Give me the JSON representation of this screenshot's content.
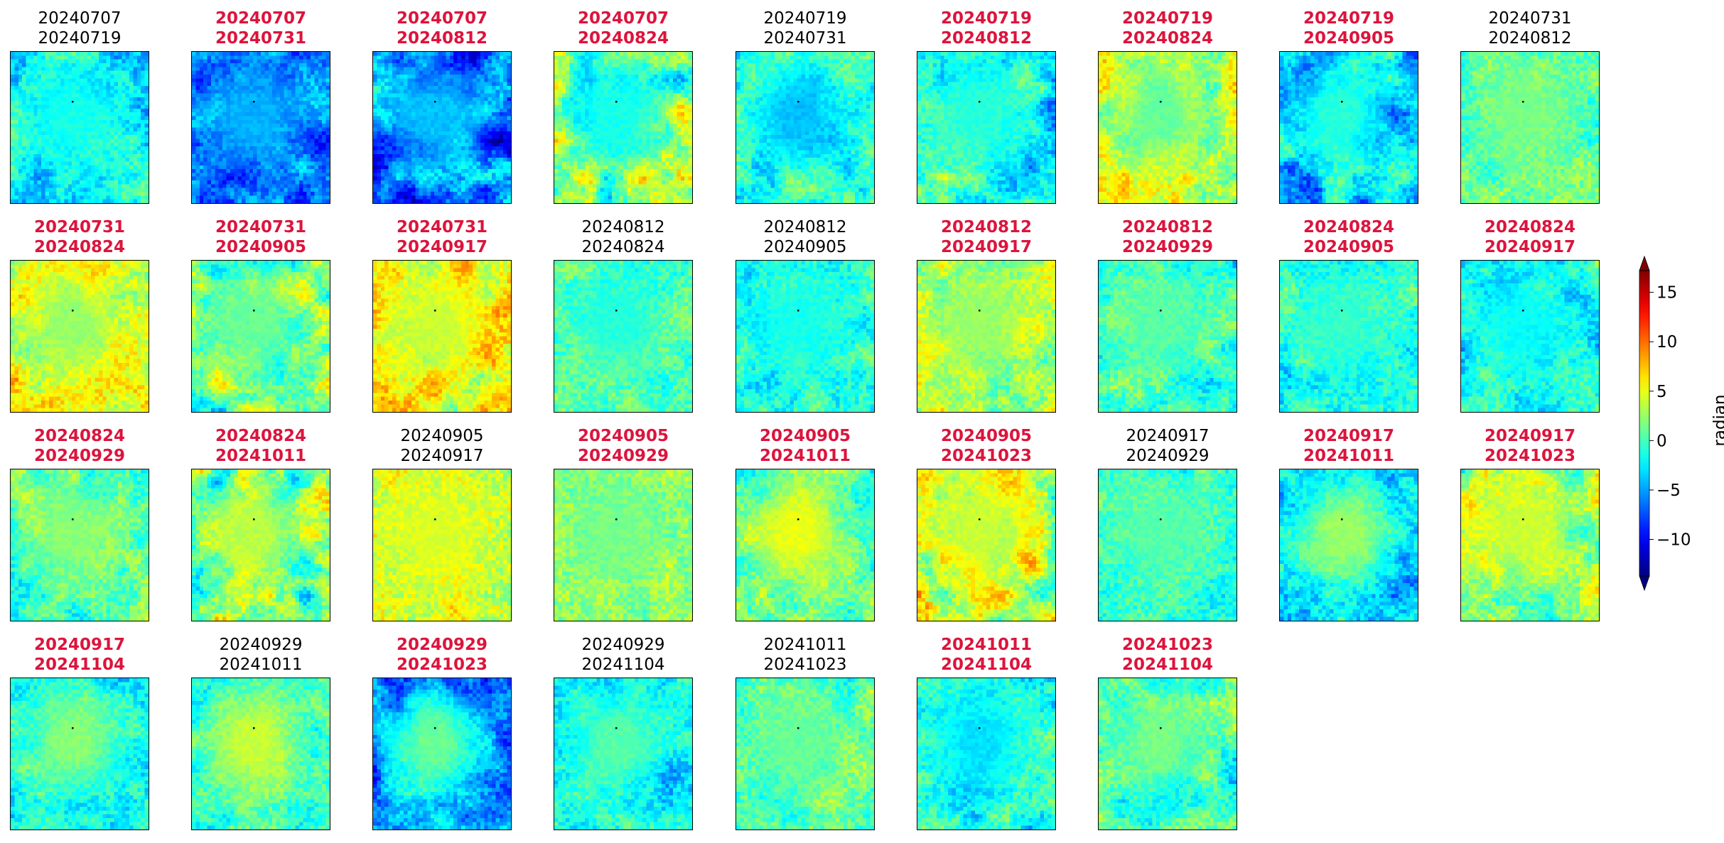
{
  "chart_data": {
    "type": "heatmap",
    "colormap": "jet",
    "highlight_color": "#dc143c",
    "normal_color": "#000000",
    "colorbar": {
      "label": "radian",
      "range": [
        -13.7,
        17.2
      ],
      "ticks": [
        "15",
        "10",
        "5",
        "0",
        "−5",
        "−10"
      ],
      "tick_values": [
        15,
        10,
        5,
        0,
        -5,
        -10
      ],
      "extend": "both"
    },
    "panels": [
      {
        "date1": "20240707",
        "date2": "20240719",
        "highlighted": false,
        "base": -2.5,
        "amp": 3.5,
        "center": -1.5
      },
      {
        "date1": "20240707",
        "date2": "20240731",
        "highlighted": true,
        "base": -6.0,
        "amp": 3.5,
        "center": -4.5
      },
      {
        "date1": "20240707",
        "date2": "20240812",
        "highlighted": true,
        "base": -6.5,
        "amp": 5.5,
        "center": -4.0
      },
      {
        "date1": "20240707",
        "date2": "20240824",
        "highlighted": true,
        "base": 1.0,
        "amp": 7.0,
        "center": -1.5
      },
      {
        "date1": "20240719",
        "date2": "20240731",
        "highlighted": false,
        "base": -1.0,
        "amp": 3.5,
        "center": -4.0
      },
      {
        "date1": "20240719",
        "date2": "20240812",
        "highlighted": true,
        "base": -1.5,
        "amp": 4.5,
        "center": -1.0
      },
      {
        "date1": "20240719",
        "date2": "20240824",
        "highlighted": true,
        "base": 4.0,
        "amp": 4.5,
        "center": 1.0
      },
      {
        "date1": "20240719",
        "date2": "20240905",
        "highlighted": true,
        "base": -4.0,
        "amp": 5.5,
        "center": -1.0
      },
      {
        "date1": "20240731",
        "date2": "20240812",
        "highlighted": false,
        "base": 1.0,
        "amp": 2.5,
        "center": 1.5
      },
      {
        "date1": "20240731",
        "date2": "20240824",
        "highlighted": true,
        "base": 5.0,
        "amp": 3.5,
        "center": 2.5
      },
      {
        "date1": "20240731",
        "date2": "20240905",
        "highlighted": true,
        "base": 1.5,
        "amp": 6.0,
        "center": 1.0
      },
      {
        "date1": "20240731",
        "date2": "20240917",
        "highlighted": true,
        "base": 5.5,
        "amp": 4.5,
        "center": 4.0
      },
      {
        "date1": "20240812",
        "date2": "20240824",
        "highlighted": false,
        "base": 0.5,
        "amp": 2.0,
        "center": -1.0
      },
      {
        "date1": "20240812",
        "date2": "20240905",
        "highlighted": false,
        "base": -1.0,
        "amp": 3.0,
        "center": -1.5
      },
      {
        "date1": "20240812",
        "date2": "20240917",
        "highlighted": true,
        "base": 3.5,
        "amp": 3.5,
        "center": 2.5
      },
      {
        "date1": "20240812",
        "date2": "20240929",
        "highlighted": true,
        "base": -0.5,
        "amp": 3.5,
        "center": 0.5
      },
      {
        "date1": "20240824",
        "date2": "20240905",
        "highlighted": true,
        "base": -1.0,
        "amp": 2.5,
        "center": -0.5
      },
      {
        "date1": "20240824",
        "date2": "20240917",
        "highlighted": true,
        "base": -1.5,
        "amp": 3.5,
        "center": -2.0
      },
      {
        "date1": "20240824",
        "date2": "20240929",
        "highlighted": true,
        "base": 0.5,
        "amp": 4.0,
        "center": 2.0
      },
      {
        "date1": "20240824",
        "date2": "20241011",
        "highlighted": true,
        "base": 1.5,
        "amp": 7.0,
        "center": 3.5
      },
      {
        "date1": "20240905",
        "date2": "20240917",
        "highlighted": false,
        "base": 4.5,
        "amp": 2.0,
        "center": 4.5
      },
      {
        "date1": "20240905",
        "date2": "20240929",
        "highlighted": true,
        "base": 2.0,
        "amp": 1.5,
        "center": 1.5
      },
      {
        "date1": "20240905",
        "date2": "20241011",
        "highlighted": true,
        "base": 0.5,
        "amp": 3.5,
        "center": 5.0
      },
      {
        "date1": "20240905",
        "date2": "20241023",
        "highlighted": true,
        "base": 4.5,
        "amp": 6.5,
        "center": 4.0
      },
      {
        "date1": "20240917",
        "date2": "20240929",
        "highlighted": false,
        "base": -0.5,
        "amp": 2.0,
        "center": 0.5
      },
      {
        "date1": "20240917",
        "date2": "20241011",
        "highlighted": true,
        "base": -3.0,
        "amp": 4.0,
        "center": 2.5
      },
      {
        "date1": "20240917",
        "date2": "20241023",
        "highlighted": true,
        "base": 3.0,
        "amp": 4.5,
        "center": 4.0
      },
      {
        "date1": "20240917",
        "date2": "20241104",
        "highlighted": true,
        "base": -2.0,
        "amp": 3.0,
        "center": 2.0
      },
      {
        "date1": "20240929",
        "date2": "20241011",
        "highlighted": false,
        "base": -0.5,
        "amp": 2.5,
        "center": 4.0
      },
      {
        "date1": "20240929",
        "date2": "20241023",
        "highlighted": true,
        "base": -6.0,
        "amp": 4.5,
        "center": 1.0
      },
      {
        "date1": "20240929",
        "date2": "20241104",
        "highlighted": false,
        "base": -2.5,
        "amp": 3.0,
        "center": 0.5
      },
      {
        "date1": "20241011",
        "date2": "20241023",
        "highlighted": false,
        "base": 0.5,
        "amp": 2.5,
        "center": 1.0
      },
      {
        "date1": "20241011",
        "date2": "20241104",
        "highlighted": true,
        "base": -0.5,
        "amp": 3.5,
        "center": -3.0
      },
      {
        "date1": "20241023",
        "date2": "20241104",
        "highlighted": true,
        "base": -0.5,
        "amp": 4.0,
        "center": 1.5
      }
    ]
  }
}
